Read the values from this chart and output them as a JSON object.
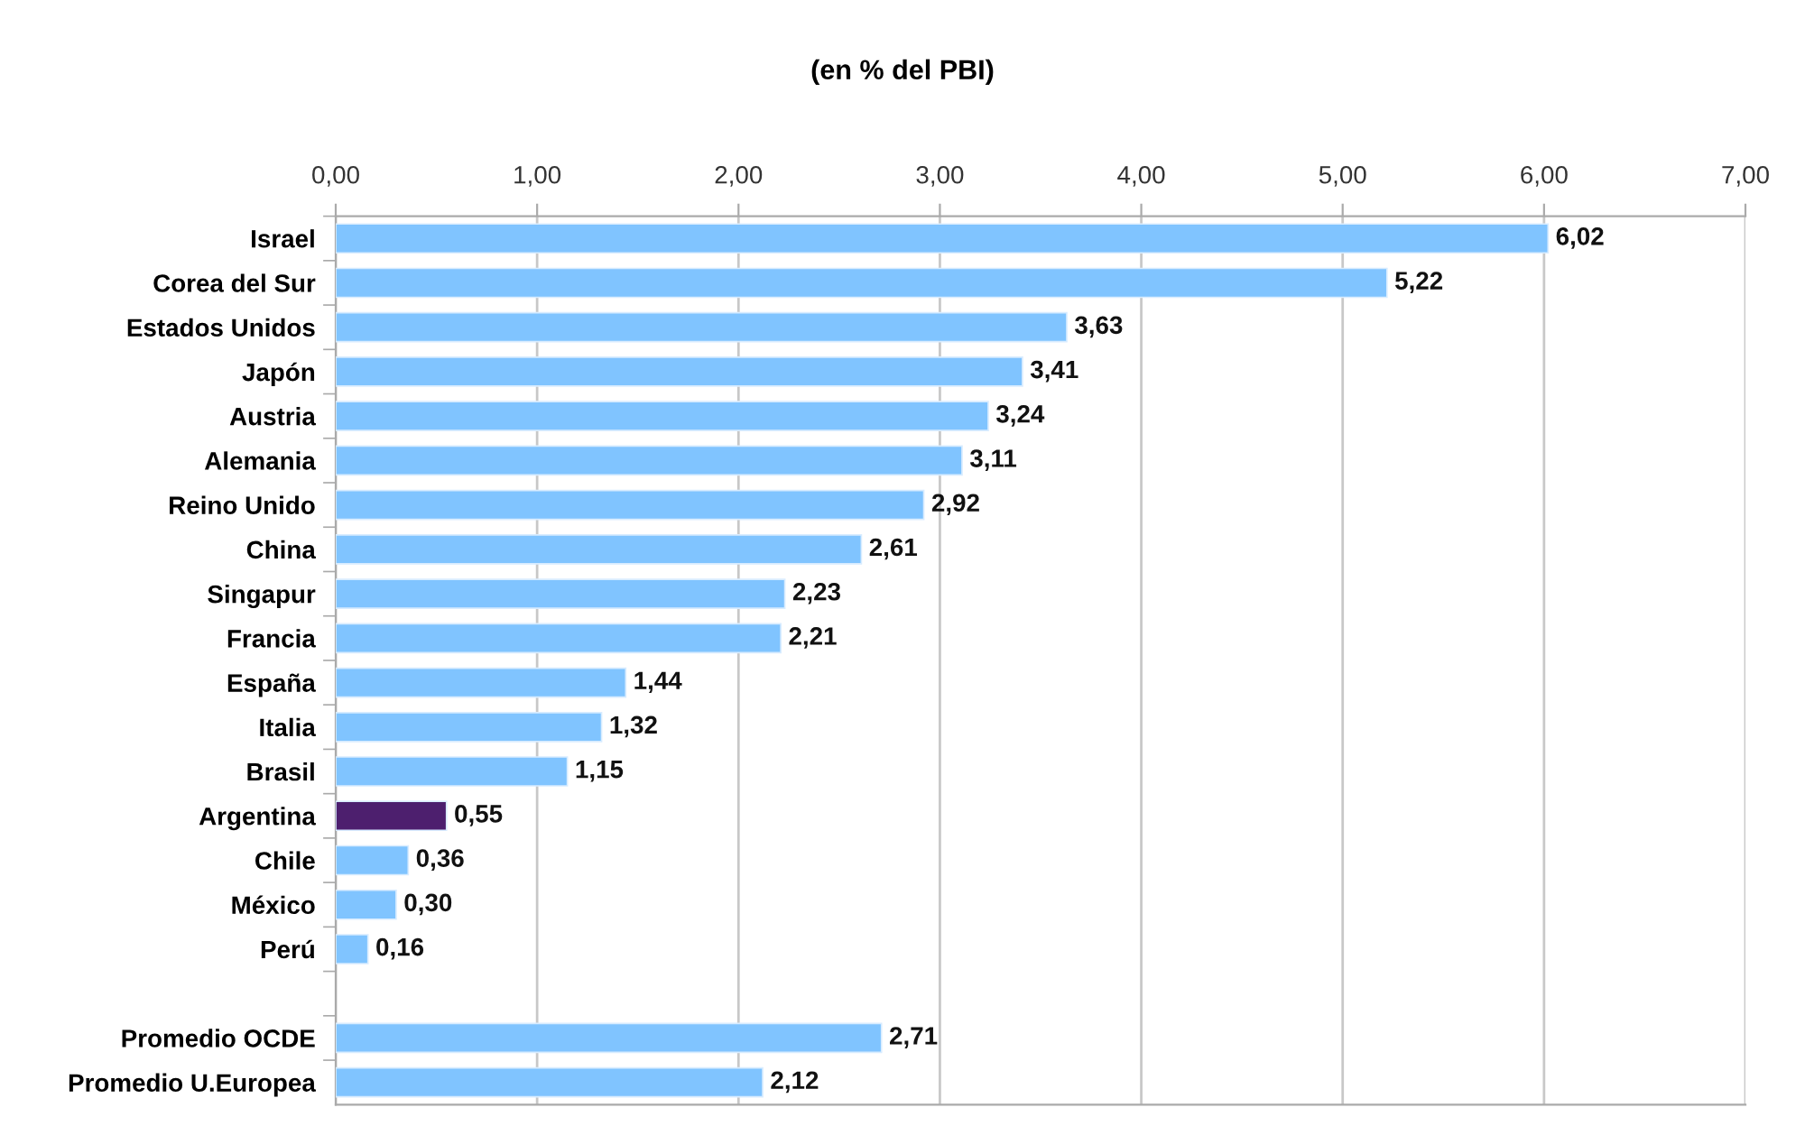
{
  "chart_data": {
    "type": "bar",
    "orientation": "horizontal",
    "title": "(en % del PBI)",
    "categories": [
      "Israel",
      "Corea del Sur",
      "Estados Unidos",
      "Japón",
      "Austria",
      "Alemania",
      "Reino Unido",
      "China",
      "Singapur",
      "Francia",
      "España",
      "Italia",
      "Brasil",
      "Argentina",
      "Chile",
      "México",
      "Perú",
      null,
      "Promedio OCDE",
      "Promedio U.Europea"
    ],
    "values": [
      6.02,
      5.22,
      3.63,
      3.41,
      3.24,
      3.11,
      2.92,
      2.61,
      2.23,
      2.21,
      1.44,
      1.32,
      1.15,
      0.55,
      0.36,
      0.3,
      0.16,
      null,
      2.71,
      2.12
    ],
    "value_labels": [
      "6,02",
      "5,22",
      "3,63",
      "3,41",
      "3,24",
      "3,11",
      "2,92",
      "2,61",
      "2,23",
      "2,21",
      "1,44",
      "1,32",
      "1,15",
      "0,55",
      "0,36",
      "0,30",
      "0,16",
      null,
      "2,71",
      "2,12"
    ],
    "colors": [
      "#80c4ff",
      "#80c4ff",
      "#80c4ff",
      "#80c4ff",
      "#80c4ff",
      "#80c4ff",
      "#80c4ff",
      "#80c4ff",
      "#80c4ff",
      "#80c4ff",
      "#80c4ff",
      "#80c4ff",
      "#80c4ff",
      "#4d1f6e",
      "#80c4ff",
      "#80c4ff",
      "#80c4ff",
      null,
      "#80c4ff",
      "#80c4ff"
    ],
    "xlim": [
      0,
      7
    ],
    "xticks": [
      {
        "value": 0,
        "label": "0,00"
      },
      {
        "value": 1,
        "label": "1,00"
      },
      {
        "value": 2,
        "label": "2,00"
      },
      {
        "value": 3,
        "label": "3,00"
      },
      {
        "value": 4,
        "label": "4,00"
      },
      {
        "value": 5,
        "label": "5,00"
      },
      {
        "value": 6,
        "label": "6,00"
      },
      {
        "value": 7,
        "label": "7,00"
      }
    ],
    "grid": "x"
  }
}
